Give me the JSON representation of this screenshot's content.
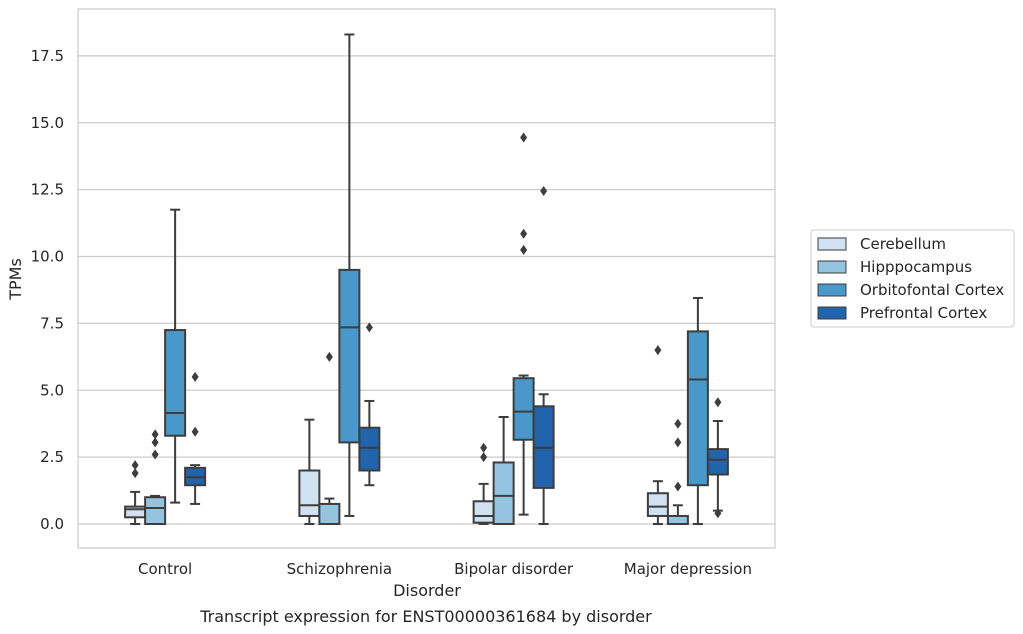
{
  "chart_data": {
    "type": "box",
    "title": "",
    "caption": "Transcript expression for ENST00000361684 by disorder",
    "xlabel": "Disorder",
    "ylabel": "TPMs",
    "ylim": [
      -0.9,
      19.2
    ],
    "yticks": [
      "0.0",
      "2.5",
      "5.0",
      "7.5",
      "10.0",
      "12.5",
      "15.0",
      "17.5"
    ],
    "grid": "horizontal",
    "legend_position": "right",
    "categories": [
      "Control",
      "Schizophrenia",
      "Bipolar disorder",
      "Major depression"
    ],
    "series": [
      {
        "name": "Cerebellum",
        "color": "#d0e1f2",
        "boxes": [
          {
            "whislo": 0.0,
            "q1": 0.25,
            "med": 0.55,
            "q3": 0.65,
            "whishi": 1.2,
            "fliers": [
              1.9,
              2.2
            ]
          },
          {
            "whislo": 0.0,
            "q1": 0.3,
            "med": 0.7,
            "q3": 2.0,
            "whishi": 3.9,
            "fliers": []
          },
          {
            "whislo": 0.0,
            "q1": 0.05,
            "med": 0.3,
            "q3": 0.85,
            "whishi": 1.5,
            "fliers": [
              2.5,
              2.85
            ]
          },
          {
            "whislo": 0.0,
            "q1": 0.3,
            "med": 0.65,
            "q3": 1.15,
            "whishi": 1.6,
            "fliers": [
              6.5
            ]
          }
        ]
      },
      {
        "name": "Hipppocampus",
        "color": "#94c4df",
        "boxes": [
          {
            "whislo": 0.0,
            "q1": 0.0,
            "med": 0.6,
            "q3": 1.0,
            "whishi": 1.05,
            "fliers": [
              2.6,
              3.05,
              3.35
            ]
          },
          {
            "whislo": 0.0,
            "q1": 0.0,
            "med": 0.0,
            "q3": 0.75,
            "whishi": 0.95,
            "fliers": [
              6.25
            ]
          },
          {
            "whislo": 0.0,
            "q1": 0.0,
            "med": 1.05,
            "q3": 2.3,
            "whishi": 4.0,
            "fliers": []
          },
          {
            "whislo": 0.0,
            "q1": 0.0,
            "med": 0.0,
            "q3": 0.3,
            "whishi": 0.7,
            "fliers": [
              1.4,
              3.05,
              3.75
            ]
          }
        ]
      },
      {
        "name": "Orbitofontal Cortex",
        "color": "#4a98c9",
        "boxes": [
          {
            "whislo": 0.8,
            "q1": 3.3,
            "med": 4.15,
            "q3": 7.25,
            "whishi": 11.75,
            "fliers": []
          },
          {
            "whislo": 0.3,
            "q1": 3.05,
            "med": 7.35,
            "q3": 9.5,
            "whishi": 18.3,
            "fliers": []
          },
          {
            "whislo": 0.35,
            "q1": 3.15,
            "med": 4.2,
            "q3": 5.45,
            "whishi": 5.55,
            "fliers": [
              10.25,
              10.85,
              14.45
            ]
          },
          {
            "whislo": 0.0,
            "q1": 1.45,
            "med": 5.4,
            "q3": 7.2,
            "whishi": 8.45,
            "fliers": []
          }
        ]
      },
      {
        "name": "Prefrontal Cortex",
        "color": "#2164ab",
        "boxes": [
          {
            "whislo": 0.75,
            "q1": 1.45,
            "med": 1.75,
            "q3": 2.1,
            "whishi": 2.2,
            "fliers": [
              3.45,
              5.5
            ]
          },
          {
            "whislo": 1.45,
            "q1": 2.0,
            "med": 2.85,
            "q3": 3.6,
            "whishi": 4.6,
            "fliers": [
              7.35
            ]
          },
          {
            "whislo": 0.0,
            "q1": 1.35,
            "med": 2.85,
            "q3": 4.4,
            "whishi": 4.85,
            "fliers": [
              12.45
            ]
          },
          {
            "whislo": 0.5,
            "q1": 1.85,
            "med": 2.4,
            "q3": 2.8,
            "whishi": 3.85,
            "fliers": [
              0.4,
              4.55
            ]
          }
        ]
      }
    ]
  }
}
